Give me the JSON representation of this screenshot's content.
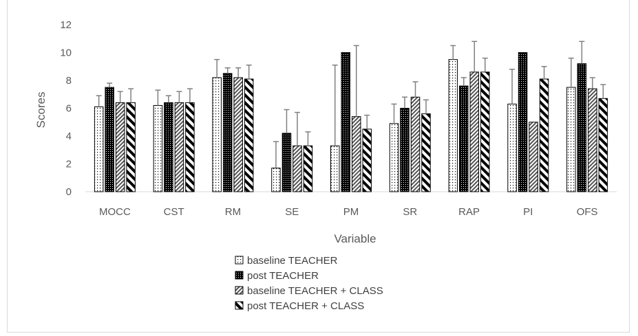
{
  "chart_data": {
    "type": "bar",
    "title": "",
    "xlabel": "Variable",
    "ylabel": "Scores",
    "ylim": [
      0,
      12
    ],
    "yticks": [
      0,
      2,
      4,
      6,
      8,
      10,
      12
    ],
    "grid": false,
    "legend_position": "bottom",
    "categories": [
      "MOCC",
      "CST",
      "RM",
      "SE",
      "PM",
      "SR",
      "RAP",
      "PI",
      "OFS"
    ],
    "series": [
      {
        "name": "baseline TEACHER",
        "pattern": "dots",
        "values": [
          6.1,
          6.2,
          8.2,
          1.7,
          3.3,
          4.9,
          9.5,
          6.3,
          7.5
        ],
        "errors": [
          0.8,
          1.1,
          1.3,
          1.9,
          5.8,
          1.4,
          1.0,
          2.5,
          2.1
        ]
      },
      {
        "name": "post TEACHER",
        "pattern": "dense-dots",
        "values": [
          7.5,
          6.4,
          8.5,
          4.2,
          10.0,
          6.0,
          7.6,
          10.0,
          9.2
        ],
        "errors": [
          0.3,
          0.5,
          0.4,
          1.7,
          0.0,
          0.8,
          0.6,
          0.0,
          1.6
        ]
      },
      {
        "name": "baseline TEACHER + CLASS",
        "pattern": "diagonal-hatch",
        "values": [
          6.4,
          6.4,
          8.2,
          3.3,
          5.4,
          6.8,
          8.6,
          5.0,
          7.4
        ],
        "errors": [
          0.8,
          0.8,
          0.7,
          2.4,
          5.1,
          1.1,
          2.2,
          0.0,
          0.8
        ]
      },
      {
        "name": "post TEACHER + CLASS",
        "pattern": "wide-stripes",
        "values": [
          6.4,
          6.4,
          8.1,
          3.3,
          4.5,
          5.6,
          8.6,
          8.1,
          6.7
        ],
        "errors": [
          1.0,
          1.0,
          1.0,
          1.0,
          1.0,
          1.0,
          1.0,
          0.9,
          1.0
        ]
      }
    ],
    "colors": {
      "bar_outline": "#000000",
      "error_bar": "#808080",
      "axis": "#d9d9d9",
      "text": "#595959"
    }
  }
}
